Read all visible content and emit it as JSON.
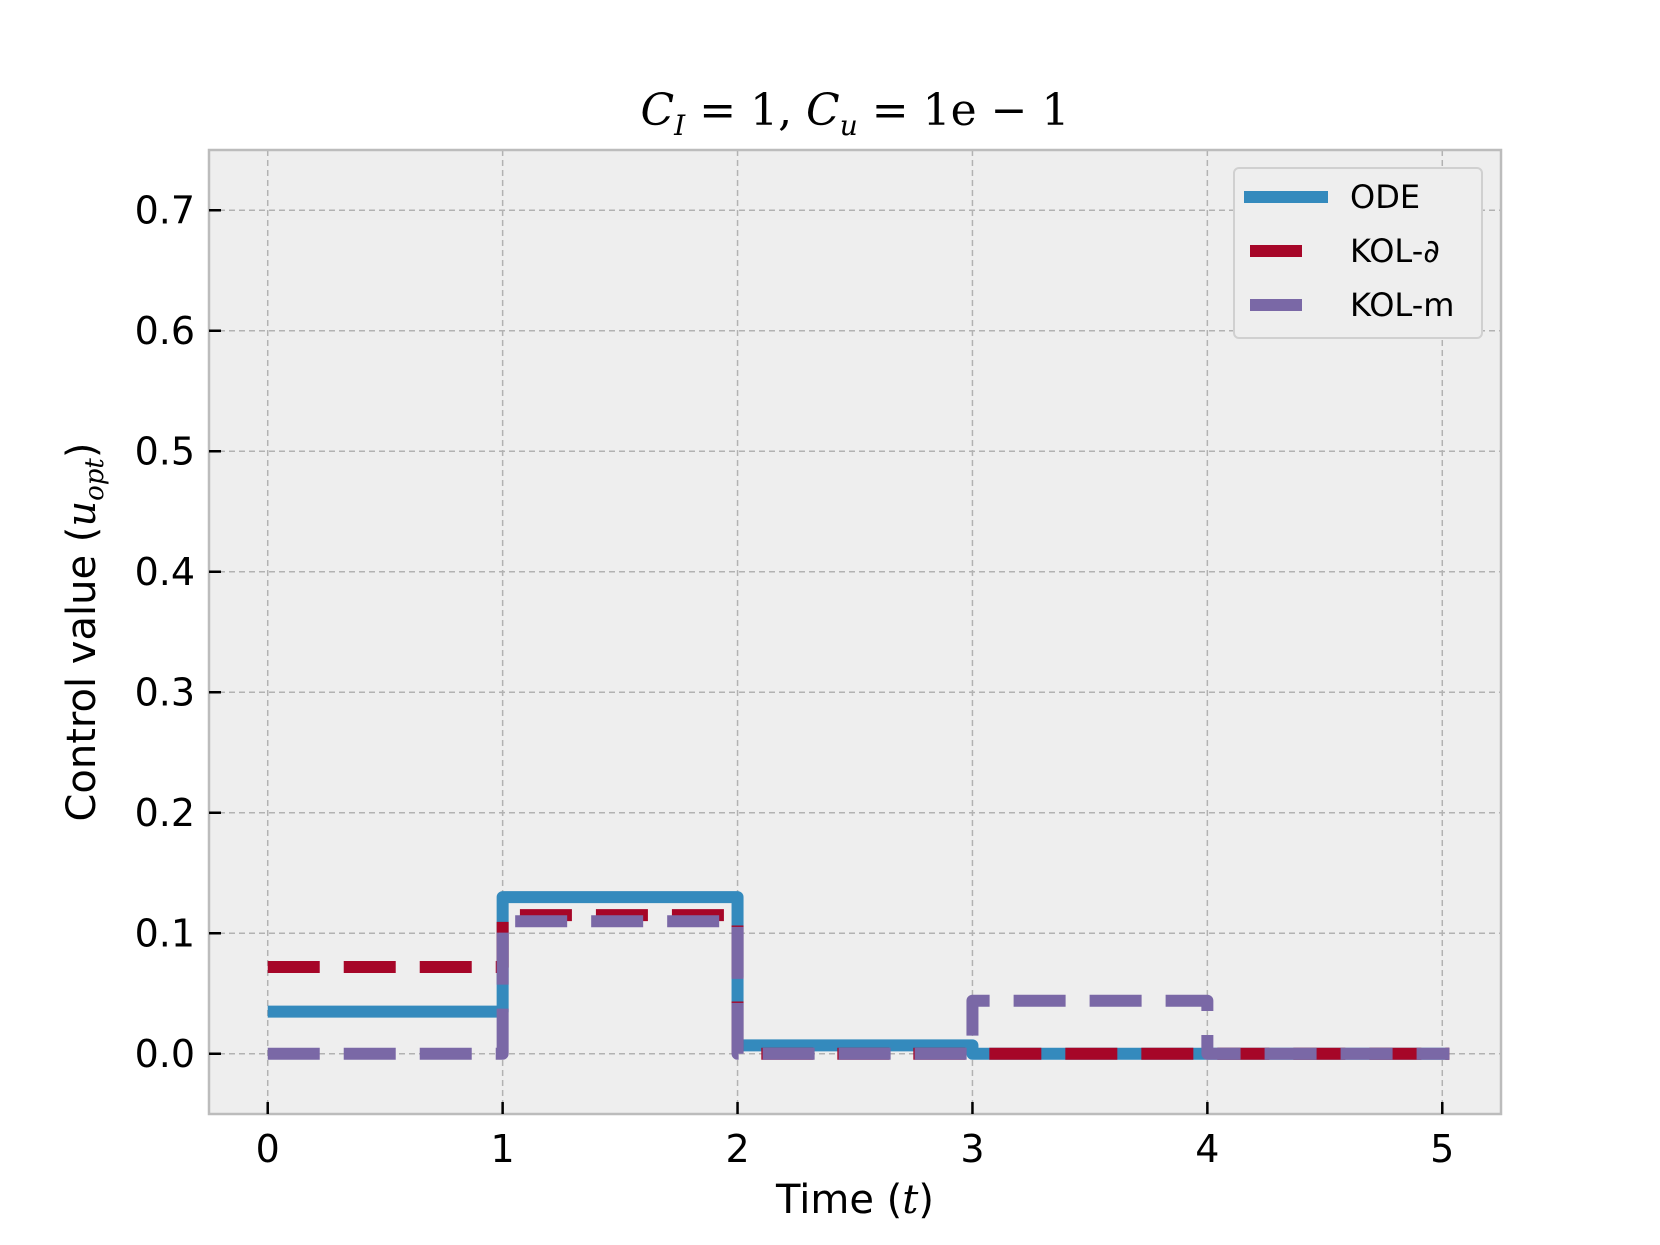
{
  "chart_data": {
    "type": "line",
    "title": "C_I = 1,  C_u = 1e − 1",
    "title_parts": {
      "c1": "C",
      "s1": "I",
      "eq1": " = 1,  ",
      "c2": "C",
      "s2": "u",
      "eq2": " = 1e − 1"
    },
    "xlabel": "Time (t)",
    "xlabel_parts": {
      "text": "Time (",
      "var": "t",
      "close": ")"
    },
    "ylabel": "Control value (u_opt)",
    "ylabel_parts": {
      "text": "Control value (",
      "var": "u",
      "sub": "opt",
      "close": ")"
    },
    "xlim": [
      -0.25,
      5.25
    ],
    "ylim": [
      -0.05,
      0.75
    ],
    "xticks": [
      0,
      1,
      2,
      3,
      4,
      5
    ],
    "xtick_labels": [
      "0",
      "1",
      "2",
      "3",
      "4",
      "5"
    ],
    "yticks": [
      0.0,
      0.1,
      0.2,
      0.3,
      0.4,
      0.5,
      0.6,
      0.7
    ],
    "ytick_labels": [
      "0.0",
      "0.1",
      "0.2",
      "0.3",
      "0.4",
      "0.5",
      "0.6",
      "0.7"
    ],
    "grid": true,
    "legend_position": "top-right",
    "series": [
      {
        "name": "ODE",
        "color": "#348ABD",
        "style": "solid",
        "step": "post",
        "x": [
          0,
          1,
          2,
          3,
          4,
          5.03
        ],
        "y": [
          0.035,
          0.13,
          0.007,
          0.0,
          0.0,
          0.0
        ]
      },
      {
        "name": "KOL-∂",
        "color": "#A60628",
        "style": "dashed",
        "step": "post",
        "x": [
          0,
          1,
          2,
          3,
          4,
          5.03
        ],
        "y": [
          0.072,
          0.115,
          0.0,
          0.0,
          0.0,
          0.0
        ]
      },
      {
        "name": "KOL-m",
        "color": "#7A68A6",
        "style": "dashed",
        "step": "post",
        "x": [
          0,
          1,
          2,
          3,
          4,
          5.03
        ],
        "y": [
          0.0,
          0.11,
          0.0,
          0.044,
          0.0,
          0.0
        ]
      }
    ]
  }
}
